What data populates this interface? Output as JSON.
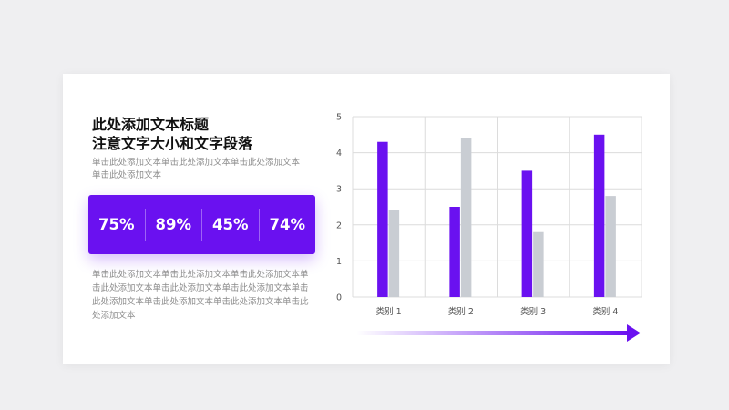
{
  "slide": {
    "title_lines": [
      "此处添加文本标题",
      "注意文字大小和文字段落"
    ],
    "subtitle": "单击此处添加文本单击此处添加文本单击此处添加文本单击此处添加文本",
    "stats": [
      "75%",
      "89%",
      "45%",
      "74%"
    ],
    "body": "单击此处添加文本单击此处添加文本单击此处添加文本单击此处添加文本单击此处添加文本单击此处添加文本单击此处添加文本单击此处添加文本单击此处添加文本单击此处添加文本"
  },
  "colors": {
    "accent": "#6a11f0",
    "secondary_bar": "#c9cdd3",
    "grid": "#dcdcdc"
  },
  "chart_data": {
    "type": "bar",
    "categories": [
      "类别 1",
      "类别 2",
      "类别 3",
      "类别 4"
    ],
    "series": [
      {
        "values": [
          4.3,
          2.5,
          3.5,
          4.5
        ],
        "color": "#6a11f0"
      },
      {
        "values": [
          2.4,
          4.4,
          1.8,
          2.8
        ],
        "color": "#c9cdd3"
      }
    ],
    "ylim": [
      0,
      5
    ],
    "yticks": [
      "0",
      "1",
      "2",
      "3",
      "4",
      "5"
    ],
    "grid": true,
    "legend": "none",
    "decoration": "gradient-arrow-below-x-axis"
  }
}
